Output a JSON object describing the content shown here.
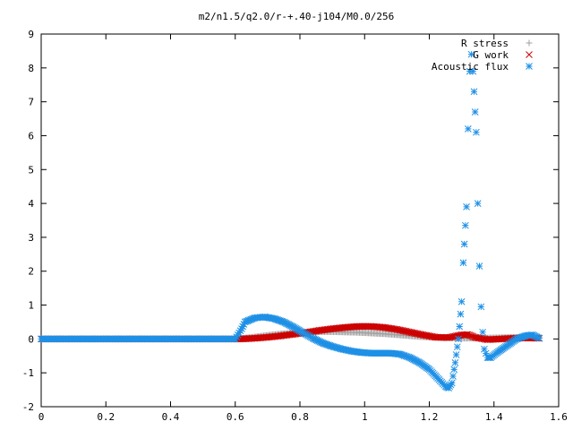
{
  "chart_data": {
    "type": "scatter",
    "title": "m2/n1.5/q2.0/r-+.40-j104/M0.0/256",
    "xlabel": "",
    "ylabel": "",
    "xlim": [
      0,
      1.6
    ],
    "ylim": [
      -2,
      9
    ],
    "x_ticks": [
      "0",
      "0.2",
      "0.4",
      "0.6",
      "0.8",
      "1",
      "1.2",
      "1.4",
      "1.6"
    ],
    "y_ticks": [
      "-2",
      "-1",
      "0",
      "1",
      "2",
      "3",
      "4",
      "5",
      "6",
      "7",
      "8",
      "9"
    ],
    "grid": false,
    "legend_position": "top-right",
    "series": [
      {
        "name": "R stress",
        "marker": "plus",
        "color": "#a0a0a0",
        "points": [
          [
            0.0,
            0
          ],
          [
            0.1,
            0
          ],
          [
            0.2,
            0
          ],
          [
            0.3,
            0
          ],
          [
            0.4,
            0
          ],
          [
            0.5,
            0
          ],
          [
            0.6,
            0
          ],
          [
            0.62,
            0.02
          ],
          [
            0.66,
            0.06
          ],
          [
            0.7,
            0.11
          ],
          [
            0.74,
            0.15
          ],
          [
            0.78,
            0.18
          ],
          [
            0.82,
            0.2
          ],
          [
            0.86,
            0.21
          ],
          [
            0.9,
            0.21
          ],
          [
            0.94,
            0.2
          ],
          [
            0.98,
            0.19
          ],
          [
            1.02,
            0.17
          ],
          [
            1.06,
            0.15
          ],
          [
            1.1,
            0.12
          ],
          [
            1.14,
            0.09
          ],
          [
            1.18,
            0.06
          ],
          [
            1.22,
            0.04
          ],
          [
            1.26,
            0.03
          ],
          [
            1.3,
            0.02
          ],
          [
            1.34,
            0.02
          ],
          [
            1.38,
            0.03
          ],
          [
            1.42,
            0.04
          ],
          [
            1.46,
            0.05
          ],
          [
            1.5,
            0.05
          ],
          [
            1.54,
            0.04
          ]
        ]
      },
      {
        "name": "G work",
        "marker": "cross",
        "color": "#cc0000",
        "points": [
          [
            0.0,
            0
          ],
          [
            0.1,
            0
          ],
          [
            0.2,
            0
          ],
          [
            0.3,
            0
          ],
          [
            0.4,
            0
          ],
          [
            0.5,
            0
          ],
          [
            0.6,
            0
          ],
          [
            0.62,
            0.0
          ],
          [
            0.66,
            0.02
          ],
          [
            0.7,
            0.05
          ],
          [
            0.74,
            0.09
          ],
          [
            0.78,
            0.14
          ],
          [
            0.82,
            0.19
          ],
          [
            0.86,
            0.25
          ],
          [
            0.9,
            0.3
          ],
          [
            0.94,
            0.34
          ],
          [
            0.98,
            0.37
          ],
          [
            1.02,
            0.37
          ],
          [
            1.06,
            0.34
          ],
          [
            1.1,
            0.28
          ],
          [
            1.14,
            0.2
          ],
          [
            1.18,
            0.12
          ],
          [
            1.22,
            0.05
          ],
          [
            1.26,
            0.04
          ],
          [
            1.3,
            0.12
          ],
          [
            1.32,
            0.13
          ],
          [
            1.34,
            0.05
          ],
          [
            1.38,
            -0.02
          ],
          [
            1.42,
            0.0
          ],
          [
            1.46,
            0.02
          ],
          [
            1.5,
            0.03
          ],
          [
            1.54,
            0.02
          ]
        ]
      },
      {
        "name": "Acoustic flux",
        "marker": "star",
        "color": "#1e90e6",
        "points": [
          [
            0.0,
            0
          ],
          [
            0.1,
            0
          ],
          [
            0.2,
            0
          ],
          [
            0.3,
            0
          ],
          [
            0.4,
            0
          ],
          [
            0.5,
            0
          ],
          [
            0.6,
            0
          ],
          [
            0.62,
            0.3
          ],
          [
            0.63,
            0.5
          ],
          [
            0.66,
            0.62
          ],
          [
            0.69,
            0.65
          ],
          [
            0.72,
            0.6
          ],
          [
            0.75,
            0.5
          ],
          [
            0.78,
            0.35
          ],
          [
            0.81,
            0.18
          ],
          [
            0.84,
            0.02
          ],
          [
            0.87,
            -0.12
          ],
          [
            0.9,
            -0.22
          ],
          [
            0.93,
            -0.3
          ],
          [
            0.96,
            -0.36
          ],
          [
            0.99,
            -0.4
          ],
          [
            1.02,
            -0.42
          ],
          [
            1.05,
            -0.42
          ],
          [
            1.08,
            -0.42
          ],
          [
            1.11,
            -0.45
          ],
          [
            1.14,
            -0.55
          ],
          [
            1.17,
            -0.7
          ],
          [
            1.2,
            -0.9
          ],
          [
            1.23,
            -1.2
          ],
          [
            1.25,
            -1.4
          ],
          [
            1.26,
            -1.45
          ],
          [
            1.27,
            -1.3
          ],
          [
            1.28,
            -0.7
          ],
          [
            1.29,
            0.0
          ],
          [
            1.3,
            1.1
          ],
          [
            1.305,
            2.25
          ],
          [
            1.315,
            3.9
          ],
          [
            1.32,
            6.2
          ],
          [
            1.325,
            7.9
          ],
          [
            1.33,
            8.4
          ],
          [
            1.335,
            7.9
          ],
          [
            1.345,
            6.1
          ],
          [
            1.35,
            4.0
          ],
          [
            1.355,
            2.15
          ],
          [
            1.36,
            0.95
          ],
          [
            1.365,
            0.2
          ],
          [
            1.37,
            -0.3
          ],
          [
            1.38,
            -0.55
          ],
          [
            1.39,
            -0.55
          ],
          [
            1.41,
            -0.4
          ],
          [
            1.44,
            -0.2
          ],
          [
            1.47,
            0.0
          ],
          [
            1.5,
            0.1
          ],
          [
            1.52,
            0.12
          ],
          [
            1.54,
            0.02
          ]
        ]
      }
    ]
  }
}
